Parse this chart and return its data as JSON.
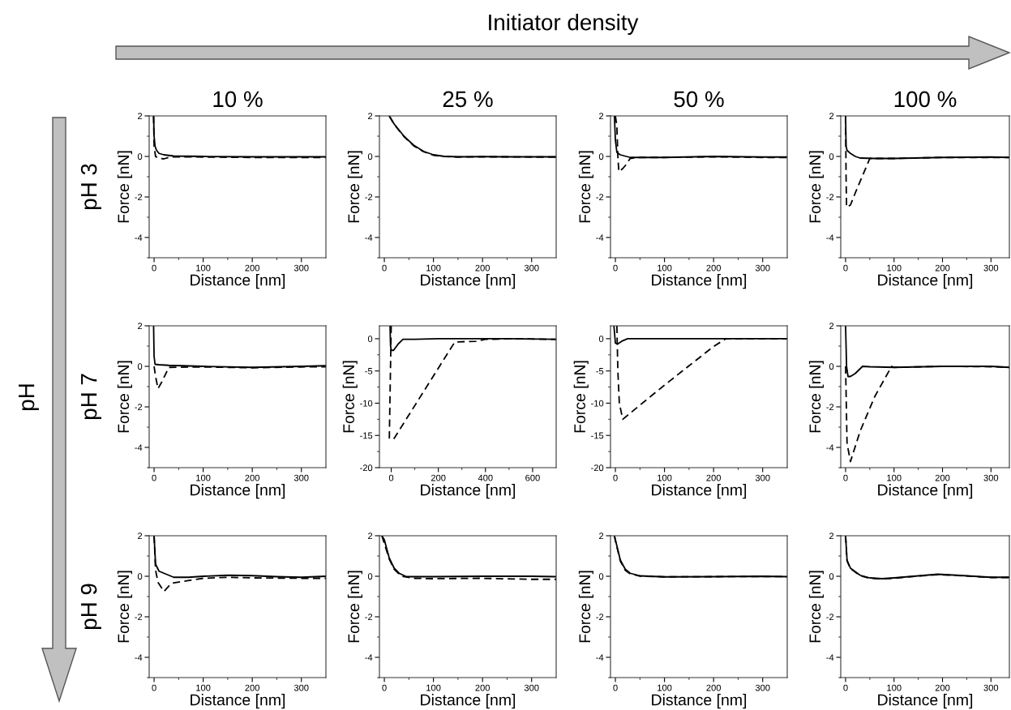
{
  "chart_data": [
    {
      "type": "line",
      "title": "10 %",
      "xlabel": "Distance [nm]",
      "ylabel": "Force [nN]",
      "xlim": [
        -10,
        350
      ],
      "ylim": [
        -5,
        2
      ],
      "xticks": [
        0,
        {
          "value": 50,
          "label": null
        },
        100,
        {
          "value": 150,
          "label": null
        },
        200,
        {
          "value": 250,
          "label": null
        },
        300
      ],
      "yticks": [
        {
          "value": -5,
          "label": null
        },
        -4,
        {
          "value": -3,
          "label": null
        },
        -2,
        {
          "value": -1,
          "label": null
        },
        0,
        {
          "value": 1,
          "label": null
        },
        2
      ],
      "annotations": [
        "Initiator density",
        "pH",
        "pH 3"
      ],
      "series": [
        {
          "color": "#000000",
          "line_style": "solid",
          "x": [
            -1,
            0,
            2,
            5,
            10,
            20,
            40,
            100,
            200,
            300,
            350
          ],
          "values": [
            2,
            1.0,
            0.5,
            0.3,
            0.15,
            0.08,
            0.02,
            0,
            -0.02,
            -0.02,
            -0.02
          ]
        },
        {
          "color": "#000000",
          "line_style": "dashed",
          "x": [
            -1,
            0,
            3,
            10,
            20,
            35,
            100,
            200,
            300,
            350
          ],
          "values": [
            2,
            0.5,
            0,
            -0.1,
            -0.12,
            -0.02,
            -0.03,
            -0.05,
            -0.05,
            -0.05
          ]
        }
      ]
    },
    {
      "type": "line",
      "title": "25 %",
      "xlabel": "Distance [nm]",
      "ylabel": "Force [nN]",
      "xlim": [
        -10,
        350
      ],
      "ylim": [
        -5,
        2
      ],
      "xticks": [
        0,
        {
          "value": 50,
          "label": null
        },
        100,
        {
          "value": 150,
          "label": null
        },
        200,
        {
          "value": 250,
          "label": null
        },
        300
      ],
      "yticks": [
        {
          "value": -5,
          "label": null
        },
        -4,
        {
          "value": -3,
          "label": null
        },
        -2,
        {
          "value": -1,
          "label": null
        },
        0,
        {
          "value": 1,
          "label": null
        },
        2
      ],
      "series": [
        {
          "color": "#000000",
          "line_style": "solid",
          "x": [
            10,
            20,
            40,
            60,
            80,
            100,
            120,
            150,
            200,
            250,
            300,
            350
          ],
          "values": [
            2,
            1.6,
            1.0,
            0.55,
            0.25,
            0.08,
            0.01,
            -0.02,
            -0.01,
            -0.02,
            -0.02,
            -0.02
          ]
        },
        {
          "color": "#000000",
          "line_style": "dashed",
          "x": [
            10,
            20,
            40,
            60,
            80,
            100,
            120,
            150,
            200,
            250,
            300,
            350
          ],
          "values": [
            2,
            1.58,
            0.98,
            0.52,
            0.23,
            0.06,
            0,
            -0.03,
            -0.02,
            -0.02,
            -0.03,
            -0.03
          ]
        }
      ]
    },
    {
      "type": "line",
      "title": "50 %",
      "xlabel": "Distance [nm]",
      "ylabel": "Force [nN]",
      "xlim": [
        -10,
        350
      ],
      "ylim": [
        -5,
        2
      ],
      "xticks": [
        0,
        {
          "value": 50,
          "label": null
        },
        100,
        {
          "value": 150,
          "label": null
        },
        200,
        {
          "value": 250,
          "label": null
        },
        300
      ],
      "yticks": [
        {
          "value": -5,
          "label": null
        },
        -4,
        {
          "value": -3,
          "label": null
        },
        -2,
        {
          "value": -1,
          "label": null
        },
        0,
        {
          "value": 1,
          "label": null
        },
        2
      ],
      "series": [
        {
          "color": "#000000",
          "line_style": "solid",
          "x": [
            -2,
            0,
            3,
            10,
            30,
            100,
            200,
            300,
            350
          ],
          "values": [
            2,
            0.8,
            0.2,
            0.08,
            -0.05,
            -0.05,
            0,
            -0.03,
            -0.03
          ]
        },
        {
          "color": "#000000",
          "line_style": "dashed",
          "x": [
            0,
            3,
            5,
            7,
            15,
            22,
            30,
            50,
            100,
            200,
            300,
            350
          ],
          "values": [
            2,
            1.5,
            0,
            -0.75,
            -0.6,
            -0.4,
            -0.1,
            -0.05,
            -0.05,
            -0.02,
            -0.05,
            -0.05
          ]
        }
      ]
    },
    {
      "type": "line",
      "title": "100 %",
      "xlabel": "Distance [nm]",
      "ylabel": "Force [nN]",
      "xlim": [
        -10,
        338
      ],
      "ylim": [
        -5,
        2
      ],
      "xticks": [
        0,
        {
          "value": 50,
          "label": null
        },
        100,
        {
          "value": 150,
          "label": null
        },
        200,
        {
          "value": 250,
          "label": null
        },
        300
      ],
      "yticks": [
        {
          "value": -5,
          "label": null
        },
        -4,
        {
          "value": -3,
          "label": null
        },
        -2,
        {
          "value": -1,
          "label": null
        },
        0,
        {
          "value": 1,
          "label": null
        },
        2
      ],
      "series": [
        {
          "color": "#000000",
          "line_style": "solid",
          "x": [
            0,
            1,
            3,
            10,
            20,
            30,
            60,
            100,
            200,
            300,
            338
          ],
          "values": [
            2,
            0.5,
            0.3,
            0.15,
            0,
            -0.08,
            -0.1,
            -0.1,
            -0.05,
            -0.03,
            -0.05
          ]
        },
        {
          "color": "#000000",
          "line_style": "dashed",
          "x": [
            0,
            1,
            2,
            10,
            20,
            50,
            100,
            200,
            300,
            338
          ],
          "values": [
            2,
            -1,
            -2.5,
            -2.4,
            -1.8,
            -0.1,
            -0.1,
            -0.05,
            -0.05,
            -0.05
          ]
        }
      ]
    },
    {
      "type": "line",
      "xlabel": "Distance [nm]",
      "ylabel": "Force [nN]",
      "xlim": [
        -10,
        350
      ],
      "ylim": [
        -5,
        2
      ],
      "xticks": [
        0,
        {
          "value": 50,
          "label": null
        },
        100,
        {
          "value": 150,
          "label": null
        },
        200,
        {
          "value": 250,
          "label": null
        },
        300
      ],
      "yticks": [
        {
          "value": -5,
          "label": null
        },
        -4,
        {
          "value": -3,
          "label": null
        },
        -2,
        {
          "value": -1,
          "label": null
        },
        0,
        {
          "value": 1,
          "label": null
        },
        2
      ],
      "annotations": [
        "pH 7"
      ],
      "series": [
        {
          "color": "#000000",
          "line_style": "solid",
          "x": [
            -1,
            0,
            2,
            10,
            30,
            100,
            200,
            300,
            350
          ],
          "values": [
            2,
            0.5,
            0.1,
            0.08,
            0.05,
            0,
            -0.05,
            0,
            0.03
          ]
        },
        {
          "color": "#000000",
          "line_style": "dashed",
          "x": [
            0,
            3,
            8,
            15,
            30,
            100,
            200,
            300,
            350
          ],
          "values": [
            0,
            -0.5,
            -1.1,
            -0.8,
            -0.05,
            -0.03,
            -0.07,
            -0.03,
            -0.02
          ]
        }
      ]
    },
    {
      "type": "line",
      "xlabel": "Distance [nm]",
      "ylabel": "Force [nN]",
      "xlim": [
        -50,
        700
      ],
      "ylim": [
        -20,
        2
      ],
      "xticks": [
        0,
        {
          "value": 100,
          "label": null
        },
        200,
        {
          "value": 300,
          "label": null
        },
        400,
        {
          "value": 500,
          "label": null
        },
        600
      ],
      "yticks": [
        -20,
        {
          "value": -17.5,
          "label": null
        },
        -15,
        {
          "value": -12.5,
          "label": null
        },
        -10,
        {
          "value": -7.5,
          "label": null
        },
        -5,
        {
          "value": -2.5,
          "label": null
        },
        0
      ],
      "series": [
        {
          "color": "#000000",
          "line_style": "solid",
          "x": [
            -5,
            -3,
            0,
            10,
            30,
            50,
            100,
            200,
            400,
            500,
            700
          ],
          "values": [
            2,
            -1,
            -1.8,
            -1.8,
            -0.8,
            -0.1,
            -0.1,
            0,
            0,
            0,
            -0.1
          ]
        },
        {
          "color": "#000000",
          "line_style": "dashed",
          "x": [
            0,
            -8,
            10,
            270,
            360,
            400,
            500,
            700
          ],
          "values": [
            2,
            -15.4,
            -15.6,
            -0.5,
            -0.4,
            -0.1,
            0,
            -0.1
          ]
        }
      ]
    },
    {
      "type": "line",
      "xlabel": "Distance [nm]",
      "ylabel": "Force [nN]",
      "xlim": [
        -10,
        350
      ],
      "ylim": [
        -20,
        2
      ],
      "xticks": [
        0,
        {
          "value": 50,
          "label": null
        },
        100,
        {
          "value": 150,
          "label": null
        },
        200,
        {
          "value": 250,
          "label": null
        },
        300
      ],
      "yticks": [
        -20,
        {
          "value": -17.5,
          "label": null
        },
        -15,
        {
          "value": -12.5,
          "label": null
        },
        -10,
        {
          "value": -7.5,
          "label": null
        },
        -5,
        {
          "value": -2.5,
          "label": null
        },
        0
      ],
      "series": [
        {
          "color": "#000000",
          "line_style": "solid",
          "x": [
            -3,
            0,
            5,
            15,
            25,
            100,
            200,
            350
          ],
          "values": [
            2,
            -0.7,
            -0.8,
            -0.3,
            0,
            0,
            0,
            0
          ]
        },
        {
          "color": "#000000",
          "line_style": "dashed",
          "x": [
            3,
            5,
            8,
            15,
            50,
            100,
            150,
            200,
            225,
            300,
            350
          ],
          "values": [
            2,
            -5,
            -10,
            -12.5,
            -10.3,
            -7.2,
            -4.2,
            -1.2,
            0,
            0,
            0
          ]
        }
      ]
    },
    {
      "type": "line",
      "xlabel": "Distance [nm]",
      "ylabel": "Force [nN]",
      "xlim": [
        -10,
        338
      ],
      "ylim": [
        -5,
        2
      ],
      "xticks": [
        0,
        {
          "value": 50,
          "label": null
        },
        100,
        {
          "value": 150,
          "label": null
        },
        200,
        {
          "value": 250,
          "label": null
        },
        300
      ],
      "yticks": [
        {
          "value": -5,
          "label": null
        },
        -4,
        {
          "value": -3,
          "label": null
        },
        -2,
        {
          "value": -1,
          "label": null
        },
        0,
        {
          "value": 1,
          "label": null
        },
        2
      ],
      "series": [
        {
          "color": "#000000",
          "line_style": "solid",
          "x": [
            0,
            2,
            5,
            10,
            20,
            35,
            50,
            100,
            200,
            300,
            338
          ],
          "values": [
            2,
            0,
            -0.5,
            -0.5,
            -0.35,
            0,
            -0.02,
            -0.05,
            0,
            0,
            -0.05
          ]
        },
        {
          "color": "#000000",
          "line_style": "dashed",
          "x": [
            0,
            3,
            10,
            30,
            60,
            95,
            100,
            200,
            300,
            338
          ],
          "values": [
            0,
            -3.8,
            -4.7,
            -3.2,
            -1.5,
            0,
            -0.05,
            0,
            -0.02,
            -0.05
          ]
        }
      ]
    },
    {
      "type": "line",
      "xlabel": "Distance [nm]",
      "ylabel": "Force [nN]",
      "xlim": [
        -10,
        350
      ],
      "ylim": [
        -5,
        2
      ],
      "xticks": [
        0,
        {
          "value": 50,
          "label": null
        },
        100,
        {
          "value": 150,
          "label": null
        },
        200,
        {
          "value": 250,
          "label": null
        },
        300
      ],
      "yticks": [
        {
          "value": -5,
          "label": null
        },
        -4,
        {
          "value": -3,
          "label": null
        },
        -2,
        {
          "value": -1,
          "label": null
        },
        0,
        {
          "value": 1,
          "label": null
        },
        2
      ],
      "annotations": [
        "pH 9"
      ],
      "series": [
        {
          "color": "#000000",
          "line_style": "solid",
          "x": [
            0,
            3,
            10,
            20,
            40,
            70,
            100,
            150,
            200,
            250,
            300,
            350
          ],
          "values": [
            2,
            0.6,
            0.25,
            0.15,
            -0.05,
            -0.05,
            0,
            0.05,
            0.03,
            -0.02,
            -0.05,
            0
          ]
        },
        {
          "color": "#000000",
          "line_style": "dashed",
          "x": [
            0,
            3,
            8,
            20,
            35,
            60,
            100,
            150,
            200,
            300,
            350
          ],
          "values": [
            2,
            0.3,
            -0.3,
            -0.75,
            -0.35,
            -0.25,
            -0.1,
            -0.05,
            -0.08,
            -0.1,
            -0.1
          ]
        }
      ]
    },
    {
      "type": "line",
      "xlabel": "Distance [nm]",
      "ylabel": "Force [nN]",
      "xlim": [
        -10,
        350
      ],
      "ylim": [
        -5,
        2
      ],
      "xticks": [
        0,
        {
          "value": 50,
          "label": null
        },
        100,
        {
          "value": 150,
          "label": null
        },
        200,
        {
          "value": 250,
          "label": null
        },
        300
      ],
      "yticks": [
        {
          "value": -5,
          "label": null
        },
        -4,
        {
          "value": -3,
          "label": null
        },
        -2,
        {
          "value": -1,
          "label": null
        },
        0,
        {
          "value": 1,
          "label": null
        },
        2
      ],
      "series": [
        {
          "color": "#000000",
          "line_style": "solid",
          "x": [
            -5,
            0,
            10,
            20,
            30,
            45,
            100,
            200,
            300,
            350
          ],
          "values": [
            2,
            1.8,
            0.9,
            0.4,
            0.15,
            -0.02,
            -0.02,
            0,
            0,
            -0.02
          ]
        },
        {
          "color": "#000000",
          "line_style": "dashed",
          "x": [
            -5,
            10,
            20,
            35,
            60,
            100,
            200,
            300,
            350
          ],
          "values": [
            2,
            0.85,
            0.35,
            0,
            -0.1,
            -0.12,
            -0.1,
            -0.15,
            -0.15
          ]
        }
      ]
    },
    {
      "type": "line",
      "xlabel": "Distance [nm]",
      "ylabel": "Force [nN]",
      "xlim": [
        -10,
        350
      ],
      "ylim": [
        -5,
        2
      ],
      "xticks": [
        0,
        {
          "value": 50,
          "label": null
        },
        100,
        {
          "value": 150,
          "label": null
        },
        200,
        {
          "value": 250,
          "label": null
        },
        300
      ],
      "yticks": [
        {
          "value": -5,
          "label": null
        },
        -4,
        {
          "value": -3,
          "label": null
        },
        -2,
        {
          "value": -1,
          "label": null
        },
        0,
        {
          "value": 1,
          "label": null
        },
        2
      ],
      "series": [
        {
          "color": "#000000",
          "line_style": "solid",
          "x": [
            -2,
            0,
            10,
            20,
            30,
            50,
            100,
            200,
            300,
            350
          ],
          "values": [
            2,
            1.8,
            0.8,
            0.35,
            0.15,
            0.02,
            -0.03,
            -0.02,
            0,
            -0.02
          ]
        },
        {
          "color": "#000000",
          "line_style": "dashed",
          "x": [
            -2,
            0,
            10,
            20,
            30,
            50,
            100,
            200,
            300,
            350
          ],
          "values": [
            2,
            1.75,
            0.75,
            0.3,
            0.12,
            0.01,
            -0.03,
            -0.02,
            -0.01,
            -0.02
          ]
        }
      ]
    },
    {
      "type": "line",
      "xlabel": "Distance [nm]",
      "ylabel": "Force [nN]",
      "xlim": [
        -10,
        338
      ],
      "ylim": [
        -5,
        2
      ],
      "xticks": [
        0,
        {
          "value": 50,
          "label": null
        },
        100,
        {
          "value": 150,
          "label": null
        },
        200,
        {
          "value": 250,
          "label": null
        },
        300
      ],
      "yticks": [
        {
          "value": -5,
          "label": null
        },
        -4,
        {
          "value": -3,
          "label": null
        },
        -2,
        {
          "value": -1,
          "label": null
        },
        0,
        {
          "value": 1,
          "label": null
        },
        2
      ],
      "series": [
        {
          "color": "#000000",
          "line_style": "solid",
          "x": [
            0,
            3,
            10,
            30,
            50,
            75,
            100,
            150,
            190,
            230,
            300,
            338
          ],
          "values": [
            2,
            0.8,
            0.4,
            0.05,
            -0.08,
            -0.12,
            -0.08,
            0.02,
            0.1,
            0.05,
            -0.05,
            -0.05
          ]
        },
        {
          "color": "#000000",
          "line_style": "dashed",
          "x": [
            0,
            3,
            10,
            30,
            50,
            75,
            100,
            150,
            190,
            230,
            300,
            338
          ],
          "values": [
            2,
            0.75,
            0.38,
            0.03,
            -0.1,
            -0.13,
            -0.1,
            0.01,
            0.08,
            0.04,
            -0.06,
            -0.06
          ]
        }
      ]
    }
  ]
}
